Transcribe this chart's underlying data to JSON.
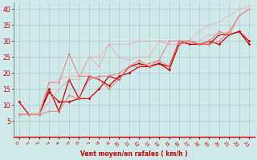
{
  "background_color": "#cfe8e8",
  "grid_color": "#b0cccc",
  "xlabel": "Vent moyen/en rafales ( km/h )",
  "xlabel_color": "#cc0000",
  "tick_color": "#cc0000",
  "xlim": [
    -0.5,
    23.5
  ],
  "ylim": [
    0,
    42
  ],
  "yticks": [
    5,
    10,
    15,
    20,
    25,
    30,
    35,
    40
  ],
  "xticks": [
    0,
    1,
    2,
    3,
    4,
    5,
    6,
    7,
    8,
    9,
    10,
    11,
    12,
    13,
    14,
    15,
    16,
    17,
    18,
    19,
    20,
    21,
    22,
    23
  ],
  "lines": [
    {
      "x": [
        0,
        1,
        2,
        3,
        4,
        5,
        6,
        7,
        8,
        9,
        10,
        11,
        12,
        13,
        14,
        15,
        16,
        17,
        18,
        19,
        20,
        21,
        22,
        23
      ],
      "y": [
        7,
        7,
        7,
        14,
        11,
        11,
        12,
        12,
        15,
        19,
        18,
        22,
        23,
        22,
        23,
        22,
        30,
        29,
        29,
        29,
        32,
        32,
        33,
        29
      ],
      "color": "#cc0000",
      "alpha": 1.0,
      "lw": 0.9,
      "marker": "D",
      "ms": 1.8
    },
    {
      "x": [
        0,
        1,
        2,
        3,
        4,
        5,
        6,
        7,
        8,
        9,
        10,
        11,
        12,
        13,
        14,
        15,
        16,
        17,
        18,
        19,
        20,
        21,
        22,
        23
      ],
      "y": [
        11,
        7,
        7,
        15,
        8,
        18,
        12,
        19,
        18,
        16,
        19,
        20,
        22,
        22,
        23,
        21,
        29,
        30,
        29,
        30,
        29,
        32,
        33,
        30
      ],
      "color": "#cc0000",
      "alpha": 1.0,
      "lw": 0.9,
      "marker": "D",
      "ms": 1.8
    },
    {
      "x": [
        0,
        1,
        2,
        3,
        4,
        5,
        6,
        7,
        8,
        9,
        10,
        11,
        12,
        13,
        14,
        15,
        16,
        17,
        18,
        19,
        20,
        21,
        22,
        23
      ],
      "y": [
        7,
        7,
        7,
        8,
        8,
        13,
        12,
        18,
        19,
        19,
        20,
        22,
        22,
        23,
        24,
        22,
        30,
        30,
        29,
        29,
        30,
        33,
        38,
        40
      ],
      "color": "#e87878",
      "alpha": 0.85,
      "lw": 0.8,
      "marker": "D",
      "ms": 1.5
    },
    {
      "x": [
        0,
        1,
        2,
        3,
        4,
        5,
        6,
        7,
        8,
        9,
        10,
        11,
        12,
        13,
        14,
        15,
        16,
        17,
        18,
        19,
        20,
        21,
        22,
        23
      ],
      "y": [
        7,
        7,
        7,
        17,
        17,
        26,
        19,
        19,
        18,
        15,
        18,
        22,
        24,
        22,
        24,
        30,
        30,
        30,
        29,
        30,
        33,
        32,
        38,
        40
      ],
      "color": "#e87878",
      "alpha": 0.85,
      "lw": 0.8,
      "marker": "D",
      "ms": 1.5
    },
    {
      "x": [
        0,
        1,
        2,
        3,
        4,
        5,
        6,
        7,
        8,
        9,
        10,
        11,
        12,
        13,
        14,
        15,
        16,
        17,
        18,
        19,
        20,
        21,
        22,
        23
      ],
      "y": [
        7,
        7,
        7,
        11,
        15,
        18,
        18,
        25,
        22,
        29,
        25,
        24,
        25,
        25,
        30,
        29,
        29,
        30,
        30,
        32,
        32,
        33,
        38,
        40
      ],
      "color": "#f0a0a0",
      "alpha": 0.7,
      "lw": 0.8,
      "marker": "D",
      "ms": 1.2
    },
    {
      "x": [
        0,
        1,
        2,
        3,
        4,
        5,
        6,
        7,
        8,
        9,
        10,
        11,
        12,
        13,
        14,
        15,
        16,
        17,
        18,
        19,
        20,
        21,
        22,
        23
      ],
      "y": [
        7,
        7,
        7,
        17,
        18,
        19,
        19,
        25,
        25,
        29,
        29,
        29,
        30,
        30,
        30,
        30,
        30,
        30,
        33,
        35,
        36,
        38,
        40,
        41
      ],
      "color": "#f0a0a0",
      "alpha": 0.55,
      "lw": 0.8,
      "marker": "D",
      "ms": 1.2
    }
  ]
}
